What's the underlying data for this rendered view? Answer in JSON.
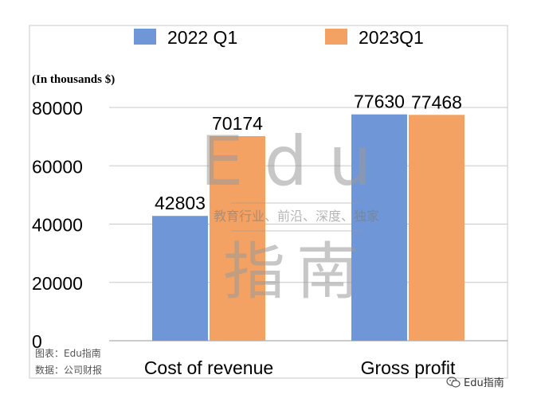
{
  "chart_data": {
    "type": "bar",
    "unit_label": "(In thousands $)",
    "categories": [
      "Cost of revenue",
      "Gross profit"
    ],
    "series": [
      {
        "name": "2022 Q1",
        "color": "#6f96d6",
        "values": [
          42803,
          77630
        ]
      },
      {
        "name": "2023Q1",
        "color": "#f3a264",
        "values": [
          70174,
          77468
        ]
      }
    ],
    "ylim": [
      0,
      80000
    ],
    "yticks": [
      "80000",
      "60000",
      "40000",
      "20000",
      "0"
    ],
    "ytick_values": [
      80000,
      60000,
      40000,
      20000,
      0
    ],
    "grid": true,
    "legend": "top"
  },
  "watermark": {
    "title": "Edu",
    "tagline": "教育行业、前沿、深度、独家",
    "subtitle": "指南"
  },
  "source": {
    "line1": "图表：Edu指南",
    "line2": "数据：公司财报"
  },
  "credit": {
    "icon": "wechat-icon",
    "text": "Edu指南"
  }
}
